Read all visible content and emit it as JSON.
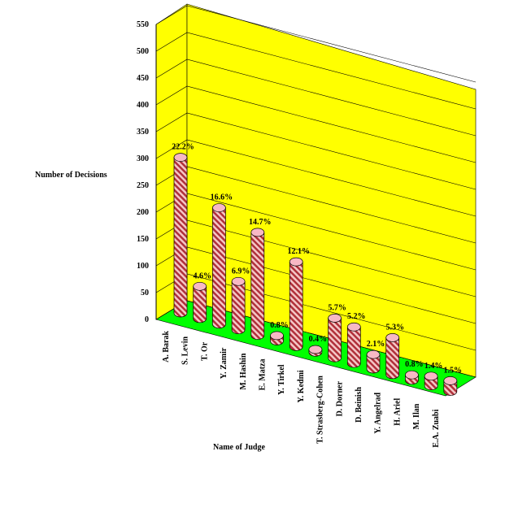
{
  "chart_data": {
    "type": "bar3d",
    "y_label": "Number of Decisions",
    "x_label": "Name of Judge",
    "categories": [
      "A. Barak",
      "S. Levin",
      "T. Or",
      "Y. Zamir",
      "M. Hashin",
      "E. Matza",
      "Y. Tirkel",
      "Y. Kedmi",
      "T. Strasberg-Cohen",
      "D. Dorner",
      "D. Beinish",
      "Y. Angelrad",
      "H. Ariel",
      "M. Ilan",
      "E.A. Zuabi"
    ],
    "values": [
      290,
      60,
      217,
      90,
      192,
      10,
      158,
      5,
      74,
      68,
      27,
      69,
      10,
      18,
      20
    ],
    "percent_labels": [
      "22.2%",
      "4.6%",
      "16.6%",
      "6.9%",
      "14.7%",
      "0.8%",
      "12.1%",
      "0.4%",
      "5.7%",
      "5.2%",
      "2.1%",
      "5.3%",
      "0.8%",
      "1.4%",
      "1.5%"
    ],
    "color": "#c0392b",
    "ylim": [
      0,
      550
    ],
    "yticks": [
      0,
      50,
      100,
      150,
      200,
      250,
      300,
      350,
      400,
      450,
      500,
      550
    ],
    "grid": true
  }
}
